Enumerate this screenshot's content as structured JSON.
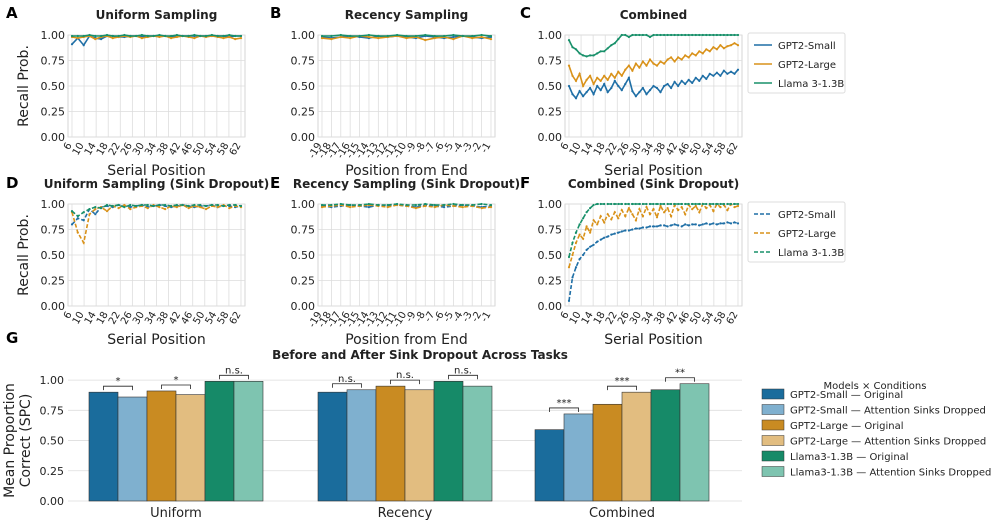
{
  "colors": {
    "gpt2_small": "#1f6fa6",
    "gpt2_large": "#d9921a",
    "llama": "#18906a",
    "bar_gpt2_small_orig": "#1a6c9c",
    "bar_gpt2_small_drop": "#7fb0cf",
    "bar_gpt2_large_orig": "#c98b22",
    "bar_gpt2_large_drop": "#e2bd80",
    "bar_llama_orig": "#168a68",
    "bar_llama_drop": "#7ec4b0",
    "grid": "#dddddd",
    "axis": "#444444",
    "text": "#222222"
  },
  "chart_data": [
    {
      "panel": "A",
      "type": "line",
      "title": "Uniform Sampling",
      "xlabel": "Serial Position",
      "ylabel": "Recall Prob.",
      "ylim": [
        0,
        1
      ],
      "yticks": [
        "0.00",
        "0.25",
        "0.50",
        "0.75",
        "1.00"
      ],
      "xticks": [
        "6",
        "10",
        "14",
        "18",
        "22",
        "26",
        "30",
        "34",
        "38",
        "42",
        "46",
        "50",
        "54",
        "58",
        "62"
      ],
      "x_start": 6,
      "x_end": 64,
      "dashed": false,
      "series": [
        {
          "name": "GPT2-Small",
          "key": "gpt2_small",
          "values": [
            0.91,
            0.97,
            0.9,
            0.99,
            0.97,
            0.96,
            0.99,
            0.99,
            0.98,
            0.98,
            0.99,
            0.99,
            0.98,
            0.99,
            0.99,
            0.99,
            0.99,
            0.98,
            0.99,
            0.99,
            0.99,
            0.99,
            0.99,
            0.99,
            0.99,
            0.99,
            0.99,
            0.98,
            0.99,
            0.99
          ]
        },
        {
          "name": "GPT2-Large",
          "key": "gpt2_large",
          "values": [
            0.98,
            0.97,
            0.98,
            0.99,
            0.96,
            0.98,
            0.99,
            0.97,
            0.98,
            0.99,
            0.98,
            0.99,
            0.97,
            0.98,
            0.99,
            0.98,
            0.99,
            0.97,
            0.98,
            0.99,
            0.98,
            0.97,
            0.99,
            0.98,
            0.99,
            0.98,
            0.97,
            0.98,
            0.96,
            0.97
          ]
        },
        {
          "name": "Llama 3-1.3B",
          "key": "llama",
          "values": [
            0.99,
            0.99,
            0.99,
            1.0,
            0.99,
            0.99,
            1.0,
            0.99,
            0.99,
            1.0,
            0.99,
            0.99,
            1.0,
            0.99,
            0.99,
            1.0,
            0.99,
            0.99,
            1.0,
            0.99,
            0.99,
            1.0,
            0.99,
            0.99,
            1.0,
            0.99,
            0.99,
            1.0,
            0.99,
            0.99
          ]
        }
      ]
    },
    {
      "panel": "B",
      "type": "line",
      "title": "Recency Sampling",
      "xlabel": "Position from End",
      "ylabel": "",
      "ylim": [
        0,
        1
      ],
      "yticks": [
        "0.00",
        "0.25",
        "0.50",
        "0.75",
        "1.00"
      ],
      "xticks": [
        "-19",
        "-18",
        "-17",
        "-16",
        "-15",
        "-14",
        "-13",
        "-12",
        "-11",
        "-10",
        "-9",
        "-8",
        "-7",
        "-6",
        "-5",
        "-4",
        "-3",
        "-2",
        "-1"
      ],
      "x_start": -19,
      "x_end": -1,
      "dashed": false,
      "series": [
        {
          "name": "GPT2-Small",
          "key": "gpt2_small",
          "values": [
            0.98,
            0.97,
            0.98,
            0.99,
            0.98,
            0.97,
            0.99,
            0.98,
            0.99,
            0.98,
            0.97,
            0.99,
            0.98,
            0.97,
            0.98,
            0.99,
            0.98,
            0.97,
            0.98
          ]
        },
        {
          "name": "GPT2-Large",
          "key": "gpt2_large",
          "values": [
            0.97,
            0.96,
            0.98,
            0.97,
            0.99,
            0.98,
            0.97,
            0.98,
            0.99,
            0.97,
            0.98,
            0.95,
            0.97,
            0.98,
            0.96,
            0.99,
            0.97,
            0.98,
            0.96
          ]
        },
        {
          "name": "Llama 3-1.3B",
          "key": "llama",
          "values": [
            0.99,
            0.99,
            1.0,
            0.99,
            0.99,
            1.0,
            0.99,
            0.99,
            1.0,
            0.99,
            0.99,
            1.0,
            0.99,
            0.99,
            1.0,
            0.99,
            0.99,
            1.0,
            0.99
          ]
        }
      ]
    },
    {
      "panel": "C",
      "type": "line",
      "title": "Combined",
      "xlabel": "Serial Position",
      "ylabel": "",
      "ylim": [
        0,
        1
      ],
      "yticks": [
        "0.00",
        "0.25",
        "0.50",
        "0.75",
        "1.00"
      ],
      "xticks": [
        "6",
        "10",
        "14",
        "18",
        "22",
        "26",
        "30",
        "34",
        "38",
        "42",
        "46",
        "50",
        "54",
        "58",
        "62"
      ],
      "x_start": 6,
      "x_end": 64,
      "dashed": false,
      "legend": [
        "GPT2-Small",
        "GPT2-Large",
        "Llama 3-1.3B"
      ],
      "series": [
        {
          "name": "GPT2-Small",
          "key": "gpt2_small",
          "values": [
            0.5,
            0.42,
            0.38,
            0.45,
            0.4,
            0.44,
            0.48,
            0.42,
            0.5,
            0.46,
            0.52,
            0.44,
            0.48,
            0.55,
            0.5,
            0.46,
            0.52,
            0.58,
            0.45,
            0.4,
            0.44,
            0.48,
            0.42,
            0.46,
            0.5,
            0.48,
            0.44,
            0.5,
            0.52,
            0.48,
            0.54,
            0.5,
            0.55,
            0.52,
            0.56,
            0.53,
            0.58,
            0.55,
            0.6,
            0.57,
            0.62,
            0.6,
            0.63,
            0.6,
            0.65,
            0.62,
            0.64,
            0.62,
            0.66
          ]
        },
        {
          "name": "GPT2-Large",
          "key": "gpt2_large",
          "values": [
            0.7,
            0.6,
            0.55,
            0.62,
            0.5,
            0.56,
            0.6,
            0.52,
            0.58,
            0.55,
            0.6,
            0.56,
            0.62,
            0.58,
            0.64,
            0.6,
            0.66,
            0.7,
            0.65,
            0.72,
            0.68,
            0.74,
            0.7,
            0.76,
            0.72,
            0.7,
            0.74,
            0.72,
            0.76,
            0.78,
            0.74,
            0.78,
            0.76,
            0.8,
            0.78,
            0.82,
            0.8,
            0.84,
            0.82,
            0.86,
            0.84,
            0.88,
            0.86,
            0.9,
            0.87,
            0.89,
            0.9,
            0.92,
            0.9
          ]
        },
        {
          "name": "Llama 3-1.3B",
          "key": "llama",
          "values": [
            0.95,
            0.88,
            0.86,
            0.82,
            0.8,
            0.79,
            0.8,
            0.8,
            0.82,
            0.84,
            0.84,
            0.87,
            0.9,
            0.92,
            0.96,
            1.0,
            1.0,
            0.98,
            1.0,
            1.0,
            1.0,
            1.0,
            1.0,
            0.98,
            1.0,
            1.0,
            1.0,
            1.0,
            1.0,
            1.0,
            1.0,
            1.0,
            1.0,
            1.0,
            1.0,
            1.0,
            1.0,
            1.0,
            1.0,
            1.0,
            1.0,
            1.0,
            1.0,
            1.0,
            1.0,
            1.0,
            1.0,
            1.0,
            1.0
          ]
        }
      ]
    },
    {
      "panel": "D",
      "type": "line",
      "title": "Uniform Sampling (Sink Dropout)",
      "xlabel": "Serial Position",
      "ylabel": "Recall Prob.",
      "ylim": [
        0,
        1
      ],
      "yticks": [
        "0.00",
        "0.25",
        "0.50",
        "0.75",
        "1.00"
      ],
      "xticks": [
        "6",
        "10",
        "14",
        "18",
        "22",
        "26",
        "30",
        "34",
        "38",
        "42",
        "46",
        "50",
        "54",
        "58",
        "62"
      ],
      "x_start": 6,
      "x_end": 64,
      "dashed": true,
      "series": [
        {
          "name": "GPT2-Small",
          "key": "gpt2_small",
          "values": [
            0.8,
            0.86,
            0.84,
            0.95,
            0.9,
            0.97,
            0.98,
            0.97,
            0.99,
            0.98,
            0.97,
            0.98,
            0.99,
            0.97,
            0.98,
            0.99,
            0.98,
            0.97,
            0.98,
            0.99,
            0.98,
            0.97,
            0.98,
            0.98,
            0.99,
            0.97,
            0.98,
            0.98,
            0.97,
            0.98
          ]
        },
        {
          "name": "GPT2-Large",
          "key": "gpt2_large",
          "values": [
            0.92,
            0.72,
            0.62,
            0.9,
            0.95,
            0.97,
            0.93,
            0.98,
            0.96,
            0.99,
            0.95,
            0.97,
            0.98,
            0.96,
            0.99,
            0.97,
            0.95,
            0.98,
            0.97,
            0.99,
            0.96,
            0.98,
            0.97,
            0.95,
            0.98,
            0.97,
            0.99,
            0.96,
            0.98,
            0.97
          ]
        },
        {
          "name": "Llama 3-1.3B",
          "key": "llama",
          "values": [
            0.93,
            0.88,
            0.92,
            0.95,
            0.97,
            0.96,
            0.99,
            0.98,
            0.99,
            0.97,
            0.99,
            0.98,
            0.99,
            0.99,
            0.98,
            0.99,
            0.99,
            0.98,
            0.99,
            0.99,
            0.98,
            0.99,
            0.99,
            0.98,
            0.99,
            0.99,
            0.98,
            0.99,
            0.99,
            0.98
          ]
        }
      ]
    },
    {
      "panel": "E",
      "type": "line",
      "title": "Recency Sampling (Sink Dropout)",
      "xlabel": "Position from End",
      "ylabel": "",
      "ylim": [
        0,
        1
      ],
      "yticks": [
        "0.00",
        "0.25",
        "0.50",
        "0.75",
        "1.00"
      ],
      "xticks": [
        "-19",
        "-18",
        "-17",
        "-16",
        "-15",
        "-14",
        "-13",
        "-12",
        "-11",
        "-10",
        "-9",
        "-8",
        "-7",
        "-6",
        "-5",
        "-4",
        "-3",
        "-2",
        "-1"
      ],
      "x_start": -19,
      "x_end": -1,
      "dashed": true,
      "series": [
        {
          "name": "GPT2-Small",
          "key": "gpt2_small",
          "values": [
            0.98,
            0.97,
            0.98,
            0.99,
            0.98,
            0.97,
            0.99,
            0.98,
            0.99,
            0.98,
            0.97,
            0.99,
            0.98,
            0.97,
            0.98,
            0.99,
            0.98,
            0.97,
            0.98
          ]
        },
        {
          "name": "GPT2-Large",
          "key": "gpt2_large",
          "values": [
            0.97,
            0.98,
            0.99,
            0.97,
            0.98,
            0.99,
            0.98,
            0.97,
            0.99,
            0.98,
            0.96,
            0.98,
            0.97,
            0.99,
            0.98,
            0.97,
            0.98,
            0.96,
            0.97
          ]
        },
        {
          "name": "Llama 3-1.3B",
          "key": "llama",
          "values": [
            0.99,
            0.99,
            1.0,
            0.99,
            0.99,
            1.0,
            0.99,
            0.99,
            1.0,
            0.99,
            0.99,
            1.0,
            0.99,
            0.99,
            1.0,
            0.99,
            0.99,
            1.0,
            0.99
          ]
        }
      ]
    },
    {
      "panel": "F",
      "type": "line",
      "title": "Combined (Sink Dropout)",
      "xlabel": "Serial Position",
      "ylabel": "",
      "ylim": [
        0,
        1
      ],
      "yticks": [
        "0.00",
        "0.25",
        "0.50",
        "0.75",
        "1.00"
      ],
      "xticks": [
        "6",
        "10",
        "14",
        "18",
        "22",
        "26",
        "30",
        "34",
        "38",
        "42",
        "46",
        "50",
        "54",
        "58",
        "62"
      ],
      "x_start": 6,
      "x_end": 64,
      "dashed": true,
      "legend": [
        "GPT2-Small",
        "GPT2-Large",
        "Llama 3-1.3B"
      ],
      "series": [
        {
          "name": "GPT2-Small",
          "key": "gpt2_small",
          "values": [
            0.05,
            0.28,
            0.38,
            0.46,
            0.5,
            0.55,
            0.58,
            0.6,
            0.63,
            0.65,
            0.67,
            0.68,
            0.7,
            0.71,
            0.72,
            0.73,
            0.74,
            0.74,
            0.75,
            0.76,
            0.76,
            0.77,
            0.77,
            0.78,
            0.78,
            0.78,
            0.79,
            0.79,
            0.78,
            0.79,
            0.8,
            0.79,
            0.78,
            0.8,
            0.79,
            0.8,
            0.8,
            0.79,
            0.8,
            0.81,
            0.8,
            0.81,
            0.8,
            0.81,
            0.81,
            0.82,
            0.81,
            0.82,
            0.81
          ]
        },
        {
          "name": "GPT2-Large",
          "key": "gpt2_large",
          "values": [
            0.38,
            0.5,
            0.62,
            0.7,
            0.66,
            0.78,
            0.72,
            0.84,
            0.8,
            0.88,
            0.82,
            0.9,
            0.85,
            0.92,
            0.86,
            0.94,
            0.88,
            0.96,
            0.9,
            0.84,
            0.95,
            0.88,
            0.97,
            0.9,
            0.95,
            0.87,
            0.98,
            0.92,
            0.96,
            0.88,
            0.99,
            0.94,
            0.97,
            0.9,
            0.99,
            0.95,
            0.98,
            0.92,
            1.0,
            0.96,
            0.99,
            0.93,
            1.0,
            0.97,
            0.99,
            0.94,
            1.0,
            0.97,
            0.98
          ]
        },
        {
          "name": "Llama 3-1.3B",
          "key": "llama",
          "values": [
            0.48,
            0.62,
            0.72,
            0.8,
            0.86,
            0.92,
            0.96,
            0.99,
            1.0,
            1.0,
            1.0,
            1.0,
            1.0,
            1.0,
            1.0,
            1.0,
            1.0,
            1.0,
            1.0,
            1.0,
            1.0,
            1.0,
            1.0,
            1.0,
            1.0,
            1.0,
            1.0,
            1.0,
            1.0,
            1.0,
            1.0,
            1.0,
            1.0,
            1.0,
            1.0,
            1.0,
            1.0,
            1.0,
            1.0,
            1.0,
            1.0,
            1.0,
            1.0,
            1.0,
            1.0,
            1.0,
            1.0,
            1.0,
            1.0
          ]
        }
      ]
    },
    {
      "panel": "G",
      "type": "bar",
      "title": "Before and After Sink Dropout Across Tasks",
      "xlabel": "",
      "ylabel": "Mean Proportion Correct (SPC)",
      "ylabel_lines": [
        "Mean Proportion",
        "Correct (SPC)"
      ],
      "ylim": [
        0,
        1.1
      ],
      "yticks": [
        "0.00",
        "0.25",
        "0.50",
        "0.75",
        "1.00"
      ],
      "categories": [
        "Uniform",
        "Recency",
        "Combined"
      ],
      "legend_title": "Models × Conditions",
      "series": [
        {
          "name": "GPT2-Small — Original",
          "key": "bar_gpt2_small_orig",
          "values": [
            0.9,
            0.9,
            0.59
          ]
        },
        {
          "name": "GPT2-Small — Attention Sinks Dropped",
          "key": "bar_gpt2_small_drop",
          "values": [
            0.86,
            0.92,
            0.72
          ]
        },
        {
          "name": "GPT2-Large — Original",
          "key": "bar_gpt2_large_orig",
          "values": [
            0.91,
            0.95,
            0.8
          ]
        },
        {
          "name": "GPT2-Large — Attention Sinks Dropped",
          "key": "bar_gpt2_large_drop",
          "values": [
            0.88,
            0.92,
            0.9
          ]
        },
        {
          "name": "Llama3-1.3B — Original",
          "key": "bar_llama_orig",
          "values": [
            0.99,
            0.99,
            0.92
          ]
        },
        {
          "name": "Llama3-1.3B — Attention Sinks Dropped",
          "key": "bar_llama_drop",
          "values": [
            0.99,
            0.95,
            0.97
          ]
        }
      ],
      "significance": [
        [
          "*",
          "*",
          "n.s."
        ],
        [
          "n.s.",
          "n.s.",
          "n.s."
        ],
        [
          "***",
          "***",
          "**"
        ]
      ]
    }
  ]
}
